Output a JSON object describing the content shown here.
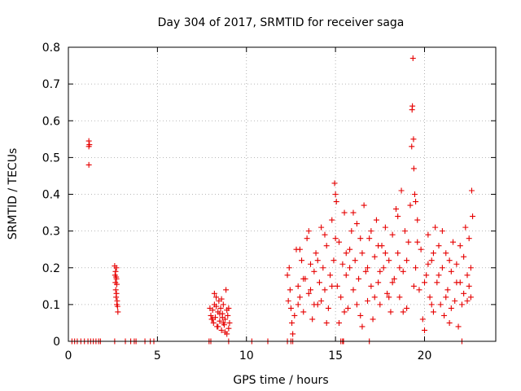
{
  "chart_data": {
    "type": "scatter",
    "title": "Day 304 of 2017, SRMTID for receiver saga",
    "xlabel": "GPS time / hours",
    "ylabel": "SRMTID / TECUs",
    "xlim": [
      0,
      24
    ],
    "ylim": [
      0,
      0.8
    ],
    "xticks": [
      0,
      5,
      10,
      15,
      20
    ],
    "xtick_labels": [
      "0",
      "5",
      "10",
      "15",
      "20"
    ],
    "yticks": [
      0,
      0.1,
      0.2,
      0.3,
      0.4,
      0.5,
      0.6,
      0.7,
      0.8
    ],
    "ytick_labels": [
      "0",
      "0.1",
      "0.2",
      "0.3",
      "0.4",
      "0.5",
      "0.6",
      "0.7",
      "0.8"
    ],
    "grid": true,
    "marker": "plus",
    "color": "#e60000",
    "series": [
      {
        "name": "SRMTID",
        "points": [
          [
            0.2,
            0
          ],
          [
            0.35,
            0
          ],
          [
            0.5,
            0
          ],
          [
            0.7,
            0
          ],
          [
            0.9,
            0
          ],
          [
            1.1,
            0
          ],
          [
            1.25,
            0
          ],
          [
            1.4,
            0
          ],
          [
            1.55,
            0
          ],
          [
            1.7,
            0
          ],
          [
            1.8,
            0
          ],
          [
            2.6,
            0
          ],
          [
            3.2,
            0
          ],
          [
            3.5,
            0
          ],
          [
            3.7,
            0
          ],
          [
            3.8,
            0
          ],
          [
            4.3,
            0
          ],
          [
            4.6,
            0
          ],
          [
            4.8,
            0
          ],
          [
            7.9,
            0
          ],
          [
            8.0,
            0
          ],
          [
            9.0,
            0
          ],
          [
            10.3,
            0
          ],
          [
            11.2,
            0
          ],
          [
            12.3,
            0
          ],
          [
            12.5,
            0
          ],
          [
            12.6,
            0
          ],
          [
            15.3,
            0
          ],
          [
            15.4,
            0
          ],
          [
            15.45,
            0
          ],
          [
            16.9,
            0
          ],
          [
            22.1,
            0
          ],
          [
            1.15,
            0.545
          ],
          [
            1.15,
            0.53
          ],
          [
            1.18,
            0.535
          ],
          [
            1.15,
            0.48
          ],
          [
            2.6,
            0.205
          ],
          [
            2.65,
            0.19
          ],
          [
            2.7,
            0.2
          ],
          [
            2.62,
            0.18
          ],
          [
            2.68,
            0.175
          ],
          [
            2.7,
            0.17
          ],
          [
            2.64,
            0.16
          ],
          [
            2.72,
            0.155
          ],
          [
            2.66,
            0.14
          ],
          [
            2.7,
            0.13
          ],
          [
            2.68,
            0.12
          ],
          [
            2.74,
            0.11
          ],
          [
            2.72,
            0.1
          ],
          [
            2.76,
            0.095
          ],
          [
            2.78,
            0.08
          ],
          [
            7.95,
            0.09
          ],
          [
            8.0,
            0.07
          ],
          [
            8.05,
            0.06
          ],
          [
            8.1,
            0.085
          ],
          [
            8.15,
            0.05
          ],
          [
            8.2,
            0.1
          ],
          [
            8.25,
            0.065
          ],
          [
            8.3,
            0.12
          ],
          [
            8.35,
            0.04
          ],
          [
            8.4,
            0.08
          ],
          [
            8.45,
            0.11
          ],
          [
            8.5,
            0.055
          ],
          [
            8.55,
            0.09
          ],
          [
            8.6,
            0.03
          ],
          [
            8.65,
            0.075
          ],
          [
            8.7,
            0.1
          ],
          [
            8.75,
            0.045
          ],
          [
            8.8,
            0.06
          ],
          [
            8.85,
            0.14
          ],
          [
            8.9,
            0.02
          ],
          [
            8.95,
            0.07
          ],
          [
            9.0,
            0.035
          ],
          [
            9.05,
            0.05
          ],
          [
            8.2,
            0.13
          ],
          [
            8.4,
            0.04
          ],
          [
            8.6,
            0.115
          ],
          [
            8.8,
            0.025
          ],
          [
            9.0,
            0.09
          ],
          [
            8.1,
            0.06
          ],
          [
            8.5,
            0.075
          ],
          [
            8.7,
            0.05
          ],
          [
            8.9,
            0.085
          ],
          [
            8.3,
            0.095
          ],
          [
            8.65,
            0.065
          ],
          [
            12.3,
            0.18
          ],
          [
            12.35,
            0.11
          ],
          [
            12.4,
            0.2
          ],
          [
            12.45,
            0.14
          ],
          [
            12.5,
            0.09
          ],
          [
            12.55,
            0.05
          ],
          [
            12.6,
            0.02
          ],
          [
            12.7,
            0.07
          ],
          [
            12.8,
            0.25
          ],
          [
            12.9,
            0.15
          ],
          [
            13.0,
            0.12
          ],
          [
            13.1,
            0.22
          ],
          [
            13.2,
            0.08
          ],
          [
            13.3,
            0.17
          ],
          [
            13.4,
            0.28
          ],
          [
            13.5,
            0.13
          ],
          [
            13.6,
            0.21
          ],
          [
            13.7,
            0.06
          ],
          [
            13.8,
            0.19
          ],
          [
            13.9,
            0.24
          ],
          [
            14.0,
            0.1
          ],
          [
            14.1,
            0.16
          ],
          [
            14.2,
            0.31
          ],
          [
            14.3,
            0.2
          ],
          [
            14.4,
            0.14
          ],
          [
            14.5,
            0.26
          ],
          [
            14.6,
            0.09
          ],
          [
            14.7,
            0.18
          ],
          [
            14.8,
            0.33
          ],
          [
            14.9,
            0.22
          ],
          [
            14.95,
            0.43
          ],
          [
            15.0,
            0.4
          ],
          [
            15.05,
            0.38
          ],
          [
            15.1,
            0.15
          ],
          [
            15.2,
            0.27
          ],
          [
            15.3,
            0.12
          ],
          [
            15.4,
            0.21
          ],
          [
            15.5,
            0.35
          ],
          [
            15.6,
            0.18
          ],
          [
            15.7,
            0.09
          ],
          [
            15.8,
            0.25
          ],
          [
            15.9,
            0.3
          ],
          [
            16.0,
            0.14
          ],
          [
            16.1,
            0.22
          ],
          [
            16.2,
            0.32
          ],
          [
            16.3,
            0.17
          ],
          [
            16.4,
            0.07
          ],
          [
            16.5,
            0.24
          ],
          [
            16.6,
            0.37
          ],
          [
            16.7,
            0.19
          ],
          [
            16.8,
            0.11
          ],
          [
            16.9,
            0.28
          ],
          [
            17.0,
            0.15
          ],
          [
            17.1,
            0.06
          ],
          [
            17.2,
            0.23
          ],
          [
            17.3,
            0.33
          ],
          [
            17.4,
            0.16
          ],
          [
            17.5,
            0.1
          ],
          [
            17.6,
            0.26
          ],
          [
            17.7,
            0.2
          ],
          [
            17.8,
            0.31
          ],
          [
            17.9,
            0.13
          ],
          [
            18.0,
            0.22
          ],
          [
            18.1,
            0.08
          ],
          [
            18.2,
            0.29
          ],
          [
            18.3,
            0.17
          ],
          [
            18.4,
            0.36
          ],
          [
            18.5,
            0.24
          ],
          [
            18.6,
            0.12
          ],
          [
            18.7,
            0.41
          ],
          [
            18.8,
            0.19
          ],
          [
            18.9,
            0.3
          ],
          [
            19.0,
            0.09
          ],
          [
            19.1,
            0.27
          ],
          [
            19.2,
            0.37
          ],
          [
            19.3,
            0.63
          ],
          [
            19.32,
            0.64
          ],
          [
            19.35,
            0.77
          ],
          [
            19.28,
            0.53
          ],
          [
            19.38,
            0.55
          ],
          [
            19.4,
            0.47
          ],
          [
            19.45,
            0.4
          ],
          [
            19.5,
            0.2
          ],
          [
            19.6,
            0.33
          ],
          [
            19.7,
            0.14
          ],
          [
            19.8,
            0.25
          ],
          [
            19.9,
            0.06
          ],
          [
            20.0,
            0.03
          ],
          [
            20.1,
            0.18
          ],
          [
            20.2,
            0.29
          ],
          [
            20.3,
            0.12
          ],
          [
            20.4,
            0.22
          ],
          [
            20.5,
            0.08
          ],
          [
            20.6,
            0.31
          ],
          [
            20.7,
            0.16
          ],
          [
            20.8,
            0.26
          ],
          [
            20.9,
            0.1
          ],
          [
            21.0,
            0.2
          ],
          [
            21.1,
            0.07
          ],
          [
            21.2,
            0.24
          ],
          [
            21.3,
            0.14
          ],
          [
            21.4,
            0.05
          ],
          [
            21.5,
            0.19
          ],
          [
            21.6,
            0.27
          ],
          [
            21.7,
            0.11
          ],
          [
            21.8,
            0.21
          ],
          [
            21.9,
            0.04
          ],
          [
            22.0,
            0.16
          ],
          [
            22.1,
            0.1
          ],
          [
            22.2,
            0.23
          ],
          [
            22.3,
            0.31
          ],
          [
            22.4,
            0.18
          ],
          [
            22.5,
            0.28
          ],
          [
            22.6,
            0.12
          ],
          [
            22.65,
            0.41
          ],
          [
            22.7,
            0.34
          ],
          [
            13.0,
            0.25
          ],
          [
            13.5,
            0.3
          ],
          [
            14.0,
            0.22
          ],
          [
            14.5,
            0.05
          ],
          [
            15.0,
            0.28
          ],
          [
            15.5,
            0.08
          ],
          [
            16.0,
            0.35
          ],
          [
            16.5,
            0.04
          ],
          [
            17.0,
            0.3
          ],
          [
            17.5,
            0.19
          ],
          [
            18.0,
            0.12
          ],
          [
            18.5,
            0.34
          ],
          [
            19.0,
            0.22
          ],
          [
            19.5,
            0.38
          ],
          [
            20.0,
            0.16
          ],
          [
            20.5,
            0.24
          ],
          [
            21.0,
            0.3
          ],
          [
            21.5,
            0.09
          ],
          [
            22.0,
            0.26
          ],
          [
            22.5,
            0.15
          ],
          [
            13.2,
            0.17
          ],
          [
            13.8,
            0.1
          ],
          [
            14.4,
            0.29
          ],
          [
            15.2,
            0.05
          ],
          [
            15.8,
            0.2
          ],
          [
            16.4,
            0.28
          ],
          [
            17.2,
            0.12
          ],
          [
            17.8,
            0.24
          ],
          [
            18.6,
            0.2
          ],
          [
            19.4,
            0.15
          ],
          [
            20.2,
            0.21
          ],
          [
            20.8,
            0.18
          ],
          [
            21.4,
            0.22
          ],
          [
            22.2,
            0.13
          ],
          [
            22.6,
            0.2
          ],
          [
            12.9,
            0.1
          ],
          [
            13.6,
            0.14
          ],
          [
            14.2,
            0.11
          ],
          [
            14.8,
            0.15
          ],
          [
            15.6,
            0.24
          ],
          [
            16.2,
            0.1
          ],
          [
            16.8,
            0.2
          ],
          [
            17.4,
            0.26
          ],
          [
            18.2,
            0.16
          ],
          [
            18.8,
            0.08
          ],
          [
            19.6,
            0.27
          ],
          [
            20.4,
            0.1
          ],
          [
            21.2,
            0.12
          ],
          [
            21.8,
            0.16
          ],
          [
            22.4,
            0.11
          ]
        ]
      }
    ]
  }
}
